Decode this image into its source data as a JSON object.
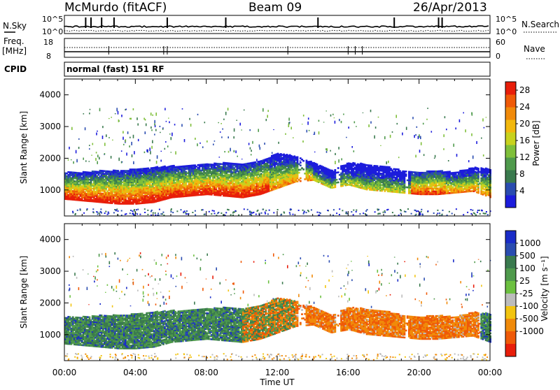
{
  "header": {
    "station": "McMurdo (fitACF)",
    "beam": "Beam 09",
    "date": "26/Apr/2013"
  },
  "aux": {
    "nsky_label": "N.Sky",
    "nsearch_label": "N.Search",
    "freq_label_line1": "Freq.",
    "freq_label_line2": "[MHz]",
    "nave_label": "Nave",
    "cpid_label": "CPID",
    "cpid_value": "normal (fast) 151 RF",
    "noise_ticks": [
      "10^5",
      "10^0"
    ],
    "freq_ticks": [
      "18",
      "8"
    ],
    "nave_ticks": [
      "60",
      "0"
    ]
  },
  "colors": {
    "power": [
      "#1c1cdc",
      "#2a4cb0",
      "#3a7a4e",
      "#4f9a4c",
      "#7fbf3a",
      "#c8d21e",
      "#f2b80e",
      "#f08a0a",
      "#ef5a08",
      "#e81e0a"
    ],
    "velocity": [
      "#1a2cc8",
      "#2a4cb0",
      "#3a7a4e",
      "#4f9a4c",
      "#6cc040",
      "#bcbcbc",
      "#f2c410",
      "#f08a0a",
      "#ef5a08",
      "#e81e0a"
    ]
  },
  "chart_data": [
    {
      "type": "heatmap",
      "title": "Power",
      "xlabel": "Time UT",
      "ylabel": "Slant Range [km]",
      "x_ticks": [
        "00:00",
        "04:00",
        "08:00",
        "12:00",
        "16:00",
        "20:00",
        "00:00"
      ],
      "y_ticks": [
        "1000",
        "2000",
        "3000",
        "4000"
      ],
      "xlim_hours": [
        0,
        24
      ],
      "ylim_km": [
        180,
        4500
      ],
      "colorbar": {
        "label": "Power [dB]",
        "ticks": [
          "4",
          "8",
          "12",
          "16",
          "20",
          "24",
          "28"
        ],
        "range": [
          0,
          30
        ]
      },
      "echo_band": {
        "time_h": [
          0,
          1,
          2,
          3,
          4,
          5,
          6,
          7,
          8,
          9,
          10,
          11,
          12,
          13,
          14,
          15,
          16,
          17,
          18,
          19,
          20,
          21,
          22,
          23,
          24
        ],
        "lower_km": [
          700,
          650,
          600,
          550,
          550,
          600,
          750,
          800,
          850,
          800,
          750,
          850,
          1050,
          1250,
          1300,
          1050,
          1150,
          1000,
          950,
          900,
          850,
          850,
          900,
          950,
          750
        ],
        "upper_km": [
          1550,
          1550,
          1600,
          1600,
          1650,
          1700,
          1750,
          1750,
          1800,
          1850,
          1800,
          1900,
          2150,
          2050,
          1850,
          1600,
          1850,
          1800,
          1750,
          1600,
          1550,
          1600,
          1550,
          1700,
          1650
        ]
      }
    },
    {
      "type": "heatmap",
      "title": "Velocity",
      "xlabel": "Time UT",
      "ylabel": "Slant Range [km]",
      "x_ticks": [
        "00:00",
        "04:00",
        "08:00",
        "12:00",
        "16:00",
        "20:00",
        "00:00"
      ],
      "y_ticks": [
        "1000",
        "2000",
        "3000",
        "4000"
      ],
      "xlim_hours": [
        0,
        24
      ],
      "ylim_km": [
        180,
        4500
      ],
      "colorbar": {
        "label": "Velocity [m s⁻¹]",
        "ticks": [
          "1000",
          "500",
          "100",
          "25",
          "-25",
          "-100",
          "-500",
          "-1000"
        ]
      },
      "regions": [
        {
          "from_h": 0,
          "to_h": 10,
          "dominant": "green / positive"
        },
        {
          "from_h": 10,
          "to_h": 13,
          "dominant": "mixed"
        },
        {
          "from_h": 13,
          "to_h": 23.5,
          "dominant": "orange / negative"
        },
        {
          "from_h": 23.5,
          "to_h": 24,
          "dominant": "green / positive"
        }
      ]
    }
  ]
}
